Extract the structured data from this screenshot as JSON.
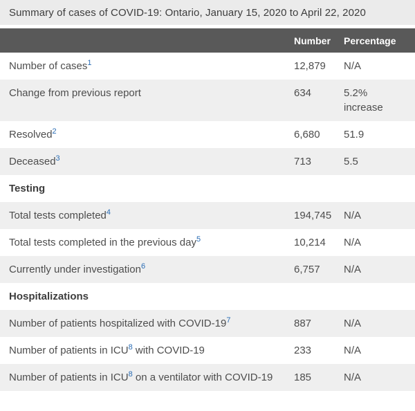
{
  "title": "Summary of cases of COVID-19: Ontario, January 15, 2020 to April 22, 2020",
  "colors": {
    "title_bg": "#ebebeb",
    "header_bg": "#595959",
    "header_text": "#ffffff",
    "row_alt_bg": "#efefef",
    "body_text": "#4d4d4d",
    "title_text": "#3d3d3d",
    "link_blue": "#2a6db5"
  },
  "table": {
    "columns": {
      "label": "",
      "number": "Number",
      "percentage": "Percentage"
    },
    "rows": [
      {
        "type": "data",
        "shaded": false,
        "label_parts": [
          {
            "t": "text",
            "v": "Number of cases"
          },
          {
            "t": "sup",
            "v": "1"
          }
        ],
        "number": "12,879",
        "percentage": "N/A"
      },
      {
        "type": "data",
        "shaded": true,
        "label_parts": [
          {
            "t": "text",
            "v": "Change from previous report"
          }
        ],
        "number": "634",
        "percentage": "5.2% increase"
      },
      {
        "type": "data",
        "shaded": false,
        "label_parts": [
          {
            "t": "text",
            "v": "Resolved"
          },
          {
            "t": "sup",
            "v": "2"
          }
        ],
        "number": "6,680",
        "percentage": "51.9"
      },
      {
        "type": "data",
        "shaded": true,
        "label_parts": [
          {
            "t": "text",
            "v": "Deceased"
          },
          {
            "t": "sup",
            "v": "3"
          }
        ],
        "number": "713",
        "percentage": "5.5"
      },
      {
        "type": "section",
        "shaded": false,
        "label": "Testing"
      },
      {
        "type": "data",
        "shaded": true,
        "label_parts": [
          {
            "t": "text",
            "v": "Total tests completed"
          },
          {
            "t": "sup",
            "v": "4"
          }
        ],
        "number": "194,745",
        "percentage": "N/A"
      },
      {
        "type": "data",
        "shaded": false,
        "label_parts": [
          {
            "t": "text",
            "v": "Total tests completed in the previous day"
          },
          {
            "t": "sup",
            "v": "5"
          }
        ],
        "number": "10,214",
        "percentage": "N/A"
      },
      {
        "type": "data",
        "shaded": true,
        "label_parts": [
          {
            "t": "text",
            "v": "Currently under investigation"
          },
          {
            "t": "sup",
            "v": "6"
          }
        ],
        "number": "6,757",
        "percentage": "N/A"
      },
      {
        "type": "section",
        "shaded": false,
        "label": "Hospitalizations"
      },
      {
        "type": "data",
        "shaded": true,
        "label_parts": [
          {
            "t": "text",
            "v": "Number of patients hospitalized with COVID-19"
          },
          {
            "t": "sup",
            "v": "7"
          }
        ],
        "number": "887",
        "percentage": "N/A"
      },
      {
        "type": "data",
        "shaded": false,
        "label_parts": [
          {
            "t": "text",
            "v": "Number of patients in ICU"
          },
          {
            "t": "sup",
            "v": "8"
          },
          {
            "t": "text",
            "v": " with COVID-19"
          }
        ],
        "number": "233",
        "percentage": "N/A"
      },
      {
        "type": "data",
        "shaded": true,
        "label_parts": [
          {
            "t": "text",
            "v": "Number of patients in ICU"
          },
          {
            "t": "sup",
            "v": "8"
          },
          {
            "t": "text",
            "v": " on a ventilator with COVID-19"
          }
        ],
        "number": "185",
        "percentage": "N/A"
      }
    ]
  }
}
